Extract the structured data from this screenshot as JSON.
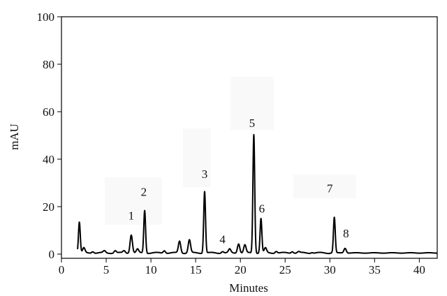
{
  "chart_data": {
    "type": "line",
    "title": "",
    "xlabel": "Minutes",
    "ylabel": "mAU",
    "xlim": [
      0,
      42
    ],
    "ylim": [
      0,
      100
    ],
    "x_ticks": [
      "0",
      "5",
      "10",
      "15",
      "20",
      "25",
      "30",
      "35",
      "40"
    ],
    "y_ticks": [
      "0",
      "20",
      "40",
      "60",
      "80",
      "100"
    ],
    "grid": false,
    "baseline": 0.5,
    "peaks": [
      {
        "x": 2.0,
        "y": 13.5
      },
      {
        "x": 2.5,
        "y": 2.5
      },
      {
        "x": 3.5,
        "y": 1.2
      },
      {
        "x": 4.8,
        "y": 1.3
      },
      {
        "x": 6.0,
        "y": 1.5
      },
      {
        "x": 7.0,
        "y": 1.4
      },
      {
        "x": 7.8,
        "y": 8.2
      },
      {
        "x": 8.5,
        "y": 2.0
      },
      {
        "x": 9.3,
        "y": 18.5
      },
      {
        "x": 11.5,
        "y": 1.6
      },
      {
        "x": 13.2,
        "y": 5.5
      },
      {
        "x": 14.3,
        "y": 6.0
      },
      {
        "x": 16.0,
        "y": 26.5
      },
      {
        "x": 18.0,
        "y": 1.2
      },
      {
        "x": 18.8,
        "y": 2.0
      },
      {
        "x": 19.8,
        "y": 4.5
      },
      {
        "x": 20.5,
        "y": 3.8
      },
      {
        "x": 21.5,
        "y": 50.5
      },
      {
        "x": 22.3,
        "y": 15.0
      },
      {
        "x": 22.8,
        "y": 2.5
      },
      {
        "x": 24.0,
        "y": 1.3
      },
      {
        "x": 25.8,
        "y": 1.2
      },
      {
        "x": 26.5,
        "y": 1.0
      },
      {
        "x": 28.0,
        "y": 0.8
      },
      {
        "x": 30.5,
        "y": 15.5
      },
      {
        "x": 31.7,
        "y": 2.5
      }
    ],
    "annotations": [
      {
        "text": "1",
        "x": 7.8,
        "y": 14.5
      },
      {
        "text": "2",
        "x": 9.2,
        "y": 24.5
      },
      {
        "text": "3",
        "x": 16.0,
        "y": 32.0
      },
      {
        "text": "4",
        "x": 18.0,
        "y": 4.5
      },
      {
        "text": "5",
        "x": 21.3,
        "y": 53.5
      },
      {
        "text": "6",
        "x": 22.4,
        "y": 17.5
      },
      {
        "text": "7",
        "x": 30.0,
        "y": 26.0
      },
      {
        "text": "8",
        "x": 31.8,
        "y": 7.0
      }
    ],
    "line_color": "#000000"
  }
}
